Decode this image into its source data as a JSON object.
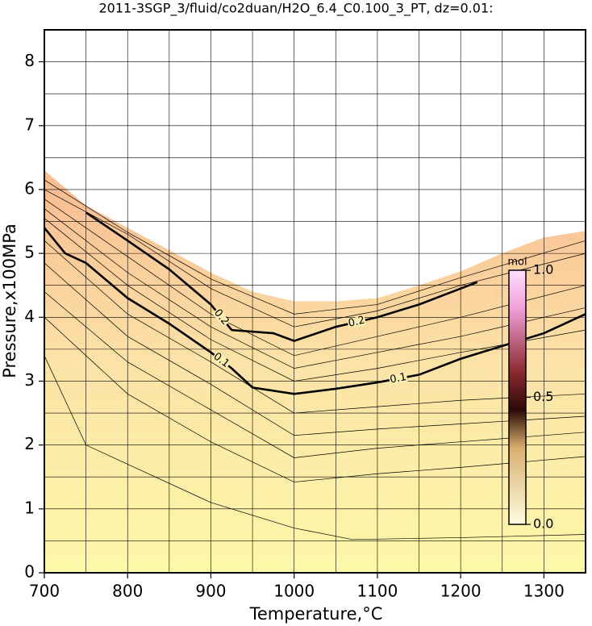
{
  "chart_data": {
    "type": "contour",
    "title": "2011-3SGP_3/fluid/co2duan/H2O_6.4_C0.100_3_PT, dz=0.01:",
    "x_label": "Temperature,°C",
    "y_label": "Pressure,x100MPa",
    "xlim": [
      700,
      1350
    ],
    "ylim": [
      0,
      8.5
    ],
    "xticks": [
      700,
      800,
      900,
      1000,
      1100,
      1200,
      1300
    ],
    "yticks": [
      0,
      1,
      2,
      3,
      4,
      5,
      6,
      7,
      8
    ],
    "x_minor_grid": [
      750,
      850,
      950,
      1050,
      1150,
      1250
    ],
    "y_minor_grid": [
      0.5,
      1.5,
      2.5,
      3.5,
      4.5,
      5.5,
      6.5,
      7.5
    ],
    "grid": true,
    "domain_top": {
      "x": [
        700,
        750,
        800,
        850,
        900,
        950,
        1000,
        1050,
        1100,
        1150,
        1200,
        1250,
        1300,
        1350
      ],
      "y": [
        6.3,
        5.75,
        5.4,
        5.05,
        4.7,
        4.4,
        4.25,
        4.25,
        4.3,
        4.5,
        4.72,
        5.0,
        5.25,
        5.35
      ]
    },
    "series": [
      {
        "x": [
          700,
          750,
          800,
          900,
          1000,
          1070,
          1200,
          1350
        ],
        "y": [
          3.4,
          2.0,
          1.7,
          1.1,
          0.7,
          0.52,
          0.55,
          0.6
        ]
      },
      {
        "x": [
          700,
          800,
          900,
          1000,
          1100,
          1200,
          1350
        ],
        "y": [
          4.0,
          2.8,
          2.05,
          1.42,
          1.55,
          1.65,
          1.82
        ]
      },
      {
        "x": [
          700,
          800,
          900,
          1000,
          1100,
          1200,
          1350
        ],
        "y": [
          4.4,
          3.3,
          2.55,
          1.8,
          1.95,
          2.05,
          2.2
        ]
      },
      {
        "x": [
          700,
          800,
          900,
          1000,
          1100,
          1200,
          1350
        ],
        "y": [
          4.85,
          3.7,
          2.95,
          2.15,
          2.25,
          2.33,
          2.45
        ]
      },
      {
        "x": [
          700,
          800,
          900,
          1000,
          1100,
          1200,
          1350
        ],
        "y": [
          5.2,
          4.05,
          3.3,
          2.5,
          2.6,
          2.7,
          2.8
        ]
      },
      {
        "name": "0.1",
        "x": [
          700,
          725,
          750,
          800,
          850,
          900,
          925,
          950,
          1000,
          1050,
          1100,
          1150,
          1200,
          1250,
          1300,
          1350
        ],
        "y": [
          5.4,
          5.0,
          4.85,
          4.3,
          3.9,
          3.45,
          3.2,
          2.9,
          2.8,
          2.88,
          2.98,
          3.1,
          3.35,
          3.55,
          3.75,
          4.05
        ]
      },
      {
        "x": [
          700,
          800,
          900,
          1000,
          1100,
          1200,
          1350
        ],
        "y": [
          5.55,
          4.5,
          3.65,
          3.0,
          3.2,
          3.45,
          3.8
        ]
      },
      {
        "x": [
          700,
          800,
          900,
          1000,
          1100,
          1200,
          1350
        ],
        "y": [
          5.7,
          4.7,
          3.85,
          3.2,
          3.45,
          3.7,
          4.15
        ]
      },
      {
        "x": [
          700,
          800,
          900,
          1000,
          1100,
          1200,
          1350
        ],
        "y": [
          5.85,
          4.95,
          4.05,
          3.4,
          3.7,
          4.0,
          4.5
        ]
      },
      {
        "name": "0.2",
        "x": [
          750,
          800,
          850,
          900,
          925,
          975,
          1000,
          1050,
          1100,
          1150,
          1200,
          1220
        ],
        "y": [
          5.64,
          5.2,
          4.75,
          4.2,
          3.8,
          3.75,
          3.63,
          3.85,
          4.0,
          4.2,
          4.45,
          4.55
        ]
      },
      {
        "x": [
          700,
          800,
          900,
          1000,
          1100,
          1200,
          1350
        ],
        "y": [
          6.0,
          5.3,
          4.45,
          3.85,
          4.1,
          4.5,
          5.0
        ]
      },
      {
        "x": [
          700,
          800,
          900,
          1000,
          1100,
          1200,
          1350
        ],
        "y": [
          6.15,
          5.33,
          4.6,
          4.05,
          4.2,
          4.62,
          5.2
        ]
      }
    ],
    "colorbar": {
      "label": "mol",
      "lim": [
        0,
        1
      ],
      "ticks": [
        {
          "value": 0,
          "label": "0.0"
        },
        {
          "value": 0.5,
          "label": "0.5"
        },
        {
          "value": 1,
          "label": "1.0"
        }
      ]
    }
  }
}
